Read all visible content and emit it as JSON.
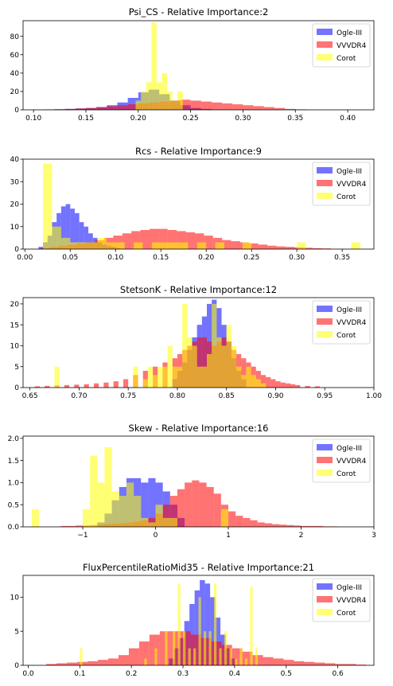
{
  "colors": {
    "Ogle-III": "#0000ff",
    "VVVDR4": "#ff0000",
    "Corot": "#ffff00"
  },
  "chart_data": [
    {
      "type": "histogram",
      "title": "Psi_CS - Relative Importance:2",
      "xlim": [
        0.09,
        0.425
      ],
      "ylim": [
        0,
        97
      ],
      "xticks": [
        0.1,
        0.15,
        0.2,
        0.25,
        0.3,
        0.35,
        0.4
      ],
      "xtick_labels": [
        "0.10",
        "0.15",
        "0.20",
        "0.25",
        "0.30",
        "0.35",
        "0.40"
      ],
      "yticks": [
        0,
        20,
        40,
        60,
        80
      ],
      "ytick_labels": [
        "0",
        "20",
        "40",
        "60",
        "80"
      ],
      "legend": [
        "Ogle-III",
        "VVVDR4",
        "Corot"
      ],
      "legend_loc": "upper right",
      "series": [
        {
          "name": "Ogle-III",
          "color": "#0000ff",
          "x": [
            0.125,
            0.135,
            0.145,
            0.155,
            0.165,
            0.175,
            0.185,
            0.195,
            0.205,
            0.215,
            0.225,
            0.235,
            0.245,
            0.255,
            0.265
          ],
          "y": [
            0.5,
            1,
            1.5,
            2,
            3,
            5,
            8,
            13,
            19,
            22,
            17,
            10,
            5,
            2,
            1
          ],
          "width": 0.01
        },
        {
          "name": "VVVDR4",
          "color": "#ff0000",
          "x": [
            0.105,
            0.115,
            0.125,
            0.135,
            0.145,
            0.155,
            0.165,
            0.175,
            0.185,
            0.195,
            0.205,
            0.215,
            0.225,
            0.235,
            0.245,
            0.255,
            0.265,
            0.275,
            0.285,
            0.295,
            0.305,
            0.315,
            0.325,
            0.335,
            0.345,
            0.355
          ],
          "y": [
            0.3,
            0.5,
            0.8,
            1,
            1.5,
            2,
            3,
            4,
            5,
            6,
            7,
            8,
            9,
            10,
            11,
            10,
            9,
            8,
            7,
            6,
            5,
            4,
            3,
            2,
            1,
            0.5
          ],
          "width": 0.01
        },
        {
          "name": "Corot",
          "color": "#ffff00",
          "x": [
            0.2,
            0.205,
            0.21,
            0.215,
            0.22,
            0.225,
            0.23,
            0.235,
            0.24
          ],
          "y": [
            10,
            20,
            30,
            95,
            30,
            40,
            20,
            10,
            20
          ],
          "width": 0.005
        }
      ]
    },
    {
      "type": "histogram",
      "title": "Rcs - Relative Importance:9",
      "xlim": [
        -0.002,
        0.385
      ],
      "ylim": [
        0,
        40
      ],
      "xticks": [
        0.0,
        0.05,
        0.1,
        0.15,
        0.2,
        0.25,
        0.3,
        0.35
      ],
      "xtick_labels": [
        "0.00",
        "0.05",
        "0.10",
        "0.15",
        "0.20",
        "0.25",
        "0.30",
        "0.35"
      ],
      "yticks": [
        0,
        10,
        20,
        30,
        40
      ],
      "ytick_labels": [
        "0",
        "10",
        "20",
        "30",
        "40"
      ],
      "legend": [
        "Ogle-III",
        "VVVDR4",
        "Corot"
      ],
      "legend_loc": "upper right",
      "series": [
        {
          "name": "Ogle-III",
          "color": "#0000ff",
          "x": [
            0.0175,
            0.0225,
            0.0275,
            0.0325,
            0.0375,
            0.0425,
            0.0475,
            0.0525,
            0.0575,
            0.0625,
            0.0675,
            0.0725,
            0.0775,
            0.0825,
            0.0875,
            0.0925,
            0.0975,
            0.1025
          ],
          "y": [
            1,
            3,
            6,
            12,
            16,
            19,
            20,
            18,
            16,
            12,
            10,
            7,
            5,
            3,
            2,
            1.5,
            1,
            0.5
          ],
          "width": 0.005
        },
        {
          "name": "VVVDR4",
          "color": "#ff0000",
          "x": [
            0.0225,
            0.0325,
            0.0425,
            0.0525,
            0.0625,
            0.0725,
            0.0825,
            0.0925,
            0.1025,
            0.1125,
            0.1225,
            0.1325,
            0.1425,
            0.1525,
            0.1625,
            0.1725,
            0.1825,
            0.1925,
            0.2025,
            0.2125,
            0.2225,
            0.2325,
            0.2425,
            0.2525,
            0.2625,
            0.2725,
            0.2825,
            0.2925,
            0.3025,
            0.3125,
            0.3225,
            0.3325
          ],
          "y": [
            0.5,
            1,
            1.5,
            2,
            2.5,
            3,
            4,
            5,
            6,
            7,
            8,
            8.5,
            9,
            9,
            8.5,
            8,
            7.5,
            7,
            6,
            5,
            4,
            3.5,
            3,
            2.5,
            2,
            1.5,
            1.2,
            1,
            0.8,
            0.6,
            0.4,
            0.3
          ],
          "width": 0.01
        },
        {
          "name": "Corot",
          "color": "#ffff00",
          "x": [
            0.025,
            0.035,
            0.045,
            0.055,
            0.065,
            0.075,
            0.085,
            0.095,
            0.105,
            0.115,
            0.125,
            0.135,
            0.145,
            0.155,
            0.165,
            0.175,
            0.185,
            0.195,
            0.205,
            0.215,
            0.225,
            0.235,
            0.245,
            0.255,
            0.265,
            0.275,
            0.285,
            0.295,
            0.305,
            0.315,
            0.325,
            0.335,
            0.345,
            0.355,
            0.365
          ],
          "y": [
            38,
            10,
            5,
            3,
            3,
            3,
            5,
            3,
            3,
            0,
            3,
            0,
            3,
            3,
            3,
            3,
            0,
            3,
            0,
            3,
            0,
            0,
            3,
            0,
            0,
            0,
            0,
            0,
            3,
            0,
            0,
            0,
            0,
            0,
            3
          ],
          "width": 0.01
        }
      ]
    },
    {
      "type": "histogram",
      "title": "StetsonK - Relative Importance:12",
      "xlim": [
        0.643,
        1.0
      ],
      "ylim": [
        0,
        21.5
      ],
      "xticks": [
        0.65,
        0.7,
        0.75,
        0.8,
        0.85,
        0.9,
        0.95,
        1.0
      ],
      "xtick_labels": [
        "0.65",
        "0.70",
        "0.75",
        "0.80",
        "0.85",
        "0.90",
        "0.95",
        "1.00"
      ],
      "yticks": [
        0,
        5,
        10,
        15,
        20
      ],
      "ytick_labels": [
        "0",
        "5",
        "10",
        "15",
        "20"
      ],
      "legend": [
        "Ogle-III",
        "VVVDR4",
        "Corot"
      ],
      "legend_loc": "upper right",
      "series": [
        {
          "name": "Ogle-III",
          "color": "#0000ff",
          "x": [
            0.7975,
            0.8025,
            0.8075,
            0.8125,
            0.8175,
            0.8225,
            0.8275,
            0.8325,
            0.8375,
            0.8425,
            0.8475,
            0.8525,
            0.8575,
            0.8625,
            0.8675
          ],
          "y": [
            2,
            4,
            6,
            9,
            12,
            15,
            17,
            20,
            21,
            19,
            15,
            11,
            7,
            4,
            2
          ],
          "width": 0.005
        },
        {
          "name": "VVVDR4",
          "color": "#ff0000",
          "x": [
            0.6575,
            0.6675,
            0.6775,
            0.6875,
            0.6975,
            0.7075,
            0.7175,
            0.7275,
            0.7375,
            0.7475,
            0.7575,
            0.7675,
            0.7775,
            0.7875,
            0.7975,
            0.8025,
            0.8075,
            0.8125,
            0.8175,
            0.8225,
            0.8275,
            0.8325,
            0.8375,
            0.8425,
            0.8475,
            0.8525,
            0.8575,
            0.8625,
            0.8675,
            0.8725,
            0.8775,
            0.8825,
            0.8875,
            0.8925,
            0.8975,
            0.9025,
            0.9075,
            0.9125,
            0.9175,
            0.9225,
            0.9325,
            0.9425
          ],
          "y": [
            0.3,
            0.4,
            0.5,
            0.6,
            0.7,
            0.8,
            1,
            1.2,
            1.5,
            2,
            3,
            4,
            5,
            6,
            7,
            8,
            9,
            10,
            11,
            12,
            12,
            11,
            10,
            11,
            12,
            11,
            9,
            8,
            7,
            6,
            5,
            4,
            3,
            2.5,
            2,
            1.5,
            1.2,
            1,
            0.8,
            0.6,
            0.4,
            0.3
          ],
          "width": 0.005
        },
        {
          "name": "Corot",
          "color": "#ffff00",
          "x": [
            0.6775,
            0.7575,
            0.7675,
            0.7725,
            0.7775,
            0.7825,
            0.7875,
            0.7925,
            0.7975,
            0.8025,
            0.8075,
            0.8125,
            0.8175,
            0.8225,
            0.8275,
            0.8325,
            0.8375,
            0.8425,
            0.8475,
            0.8525,
            0.8575,
            0.8625,
            0.8675,
            0.8725,
            0.8775,
            0.8825,
            0.8875
          ],
          "y": [
            5,
            5,
            2,
            5,
            3,
            5,
            5,
            10,
            5,
            5,
            20,
            12,
            10,
            5,
            5,
            8,
            20,
            12,
            10,
            15,
            10,
            5,
            3,
            5,
            3,
            2,
            1
          ],
          "width": 0.005
        }
      ]
    },
    {
      "type": "histogram",
      "title": "Skew - Relative Importance:16",
      "xlim": [
        -1.82,
        3.0
      ],
      "ylim": [
        0,
        2.05
      ],
      "xticks": [
        -1,
        0,
        1,
        2,
        3
      ],
      "xtick_labels": [
        "−1",
        "0",
        "1",
        "2",
        "3"
      ],
      "yticks": [
        0.0,
        0.5,
        1.0,
        1.5,
        2.0
      ],
      "ytick_labels": [
        "0.0",
        "0.5",
        "1.0",
        "1.5",
        "2.0"
      ],
      "legend": [
        "Ogle-III",
        "VVVDR4",
        "Corot"
      ],
      "legend_loc": "upper right",
      "series": [
        {
          "name": "Ogle-III",
          "color": "#0000ff",
          "x": [
            -0.75,
            -0.65,
            -0.55,
            -0.45,
            -0.35,
            -0.25,
            -0.15,
            -0.05,
            0.05,
            0.15,
            0.25,
            0.35
          ],
          "y": [
            0.1,
            0.3,
            0.6,
            0.9,
            1.1,
            1.1,
            1.0,
            1.1,
            1.0,
            0.8,
            0.5,
            0.2
          ],
          "width": 0.1
        },
        {
          "name": "VVVDR4",
          "color": "#ff0000",
          "x": [
            -1.25,
            -1.15,
            -1.05,
            -0.95,
            -0.85,
            -0.75,
            -0.65,
            -0.55,
            -0.45,
            -0.35,
            -0.25,
            -0.15,
            -0.05,
            0.05,
            0.15,
            0.25,
            0.35,
            0.45,
            0.55,
            0.65,
            0.75,
            0.85,
            0.95,
            1.05,
            1.15,
            1.25,
            1.35,
            1.45,
            1.55,
            1.65,
            1.75,
            1.85,
            1.95,
            2.05,
            2.15,
            2.25,
            2.35,
            2.45
          ],
          "y": [
            0.02,
            0.02,
            0.03,
            0.03,
            0.04,
            0.05,
            0.06,
            0.07,
            0.08,
            0.1,
            0.12,
            0.15,
            0.2,
            0.3,
            0.5,
            0.7,
            0.85,
            1.0,
            1.05,
            1.0,
            0.9,
            0.75,
            0.5,
            0.35,
            0.25,
            0.2,
            0.15,
            0.1,
            0.08,
            0.06,
            0.05,
            0.04,
            0.03,
            0.02,
            0.02,
            0.02,
            0.01,
            0.01
          ],
          "width": 0.1
        },
        {
          "name": "Corot",
          "color": "#ffff00",
          "x": [
            -1.65,
            -0.95,
            -0.85,
            -0.75,
            -0.65,
            -0.55,
            -0.45,
            -0.35,
            -0.25,
            -0.15,
            -0.05,
            0.05,
            0.15,
            0.25,
            0.95
          ],
          "y": [
            0.4,
            0.4,
            1.6,
            1.0,
            1.8,
            0.8,
            0.7,
            1.0,
            0.7,
            0.2,
            0.1,
            0.5,
            0.2,
            0.2,
            0.4
          ],
          "width": 0.1
        }
      ]
    },
    {
      "type": "histogram",
      "title": "FluxPercentileRatioMid35 - Relative Importance:21",
      "xlim": [
        -0.01,
        0.67
      ],
      "ylim": [
        0,
        13.2
      ],
      "xticks": [
        0.0,
        0.1,
        0.2,
        0.3,
        0.4,
        0.5,
        0.6
      ],
      "xtick_labels": [
        "0.0",
        "0.1",
        "0.2",
        "0.3",
        "0.4",
        "0.5",
        "0.6"
      ],
      "yticks": [
        0,
        5,
        10
      ],
      "ytick_labels": [
        "0",
        "5",
        "10"
      ],
      "legend": [
        "Ogle-III",
        "VVVDR4",
        "Corot"
      ],
      "legend_loc": "upper right",
      "series": [
        {
          "name": "Ogle-III",
          "color": "#0000ff",
          "x": [
            0.2775,
            0.2875,
            0.2975,
            0.3075,
            0.3175,
            0.3275,
            0.3375,
            0.3475,
            0.3575,
            0.3675,
            0.3775,
            0.3875,
            0.3975
          ],
          "y": [
            1,
            2.5,
            4,
            6.5,
            9,
            11,
            12.5,
            12,
            10,
            7,
            4.5,
            2.5,
            1
          ],
          "width": 0.01
        },
        {
          "name": "VVVDR4",
          "color": "#ff0000",
          "x": [
            0.045,
            0.065,
            0.085,
            0.105,
            0.125,
            0.145,
            0.165,
            0.185,
            0.205,
            0.225,
            0.245,
            0.265,
            0.285,
            0.305,
            0.325,
            0.345,
            0.365,
            0.385,
            0.405,
            0.425,
            0.445,
            0.465,
            0.485,
            0.505,
            0.525,
            0.545,
            0.565,
            0.585,
            0.605,
            0.625,
            0.645
          ],
          "y": [
            0.2,
            0.3,
            0.4,
            0.5,
            0.6,
            0.8,
            1,
            1.5,
            2.5,
            3.5,
            4.5,
            5,
            5,
            5,
            4.5,
            4,
            3.5,
            3,
            2.5,
            2,
            1.5,
            1.2,
            1,
            0.8,
            0.6,
            0.5,
            0.4,
            0.3,
            0.2,
            0.2,
            0.1
          ],
          "width": 0.02
        },
        {
          "name": "Corot",
          "color": "#ffff00",
          "x": [
            0.1025,
            0.2275,
            0.2475,
            0.2675,
            0.2825,
            0.2925,
            0.3025,
            0.3125,
            0.3225,
            0.3325,
            0.3425,
            0.3525,
            0.3625,
            0.3725,
            0.3825,
            0.3925,
            0.4025,
            0.4125,
            0.4225,
            0.4325,
            0.4425
          ],
          "y": [
            2.5,
            1,
            2.5,
            5,
            5,
            12,
            5,
            2.5,
            2.5,
            10,
            5,
            5,
            12,
            2.5,
            5,
            2.5,
            1,
            2.5,
            1,
            11.5,
            2.5
          ],
          "width": 0.005
        }
      ]
    }
  ]
}
